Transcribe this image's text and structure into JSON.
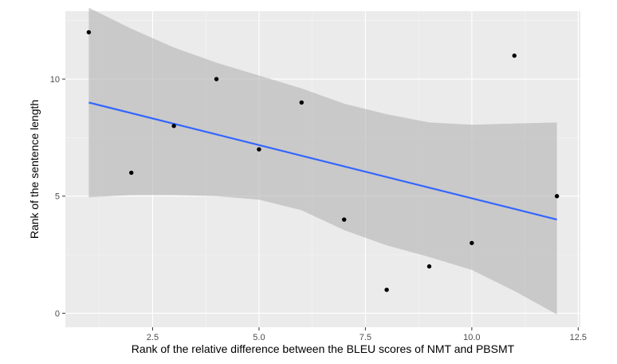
{
  "chart_data": {
    "type": "scatter",
    "xlabel": "Rank of the relative difference between the BLEU scores of NMT and PBSMT",
    "ylabel": "Rank of the sentence length",
    "xlim": [
      0.45,
      12.55
    ],
    "ylim": [
      -0.6,
      12.9
    ],
    "x_ticks": [
      2.5,
      5.0,
      7.5,
      10.0,
      12.5
    ],
    "x_tick_labels": [
      "2.5",
      "5.0",
      "7.5",
      "10.0",
      "12.5"
    ],
    "y_ticks": [
      0,
      5,
      10
    ],
    "y_tick_labels": [
      "0",
      "5",
      "10"
    ],
    "x_minor_ticks": [
      1.25,
      3.75,
      6.25,
      8.75,
      11.25
    ],
    "y_minor_ticks": [
      2.5,
      7.5,
      12.5
    ],
    "grid": true,
    "legend": "none",
    "points": [
      {
        "x": 1,
        "y": 12
      },
      {
        "x": 2,
        "y": 6
      },
      {
        "x": 3,
        "y": 8
      },
      {
        "x": 4,
        "y": 10
      },
      {
        "x": 5,
        "y": 7
      },
      {
        "x": 6,
        "y": 9
      },
      {
        "x": 7,
        "y": 4
      },
      {
        "x": 8,
        "y": 1
      },
      {
        "x": 9,
        "y": 2
      },
      {
        "x": 10,
        "y": 3
      },
      {
        "x": 11,
        "y": 11
      },
      {
        "x": 12,
        "y": 5
      }
    ],
    "fit_line": {
      "method": "linear",
      "x": [
        1,
        12
      ],
      "y": [
        9.0,
        4.0
      ]
    },
    "confidence_band": {
      "x": [
        1,
        2,
        3,
        4,
        5,
        6,
        7,
        8,
        9,
        10,
        11,
        12
      ],
      "upper": [
        13.05,
        12.15,
        11.35,
        10.7,
        10.15,
        9.6,
        8.95,
        8.5,
        8.15,
        8.05,
        8.1,
        8.15
      ],
      "lower": [
        4.95,
        5.05,
        5.05,
        5.0,
        4.85,
        4.4,
        3.55,
        2.9,
        2.4,
        1.85,
        0.95,
        -0.05
      ]
    },
    "colors": {
      "panel": "#ebebeb",
      "grid_major": "#ffffff",
      "grid_minor": "#f5f5f5",
      "band": "#b3b3b3",
      "fit_line": "#3366ff",
      "point": "#000000"
    }
  }
}
